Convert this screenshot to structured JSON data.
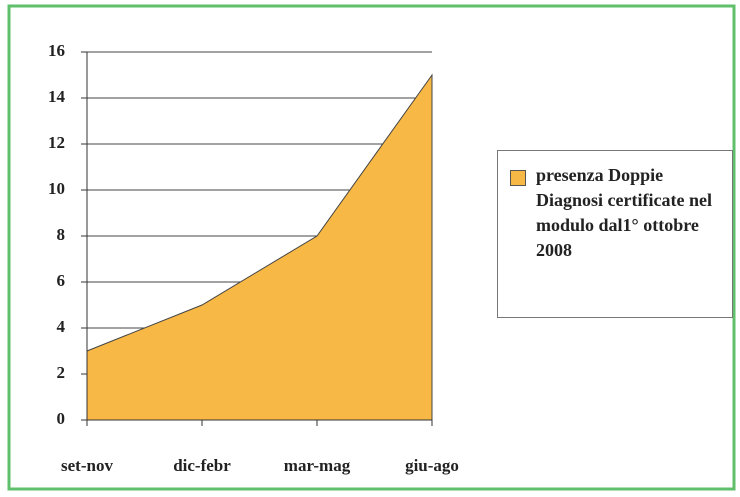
{
  "chart_data": {
    "type": "area",
    "categories": [
      "set-nov",
      "dic-febr",
      "mar-mag",
      "giu-ago"
    ],
    "series": [
      {
        "name": "presenza Doppie Diagnosi certificate nel modulo dal1° ottobre 2008",
        "color": "#f8b846",
        "values": [
          3,
          5,
          8,
          15
        ]
      }
    ],
    "ylim": [
      0,
      16
    ],
    "yticks": [
      0,
      2,
      4,
      6,
      8,
      10,
      12,
      14,
      16
    ],
    "grid": true,
    "legend": "right"
  }
}
